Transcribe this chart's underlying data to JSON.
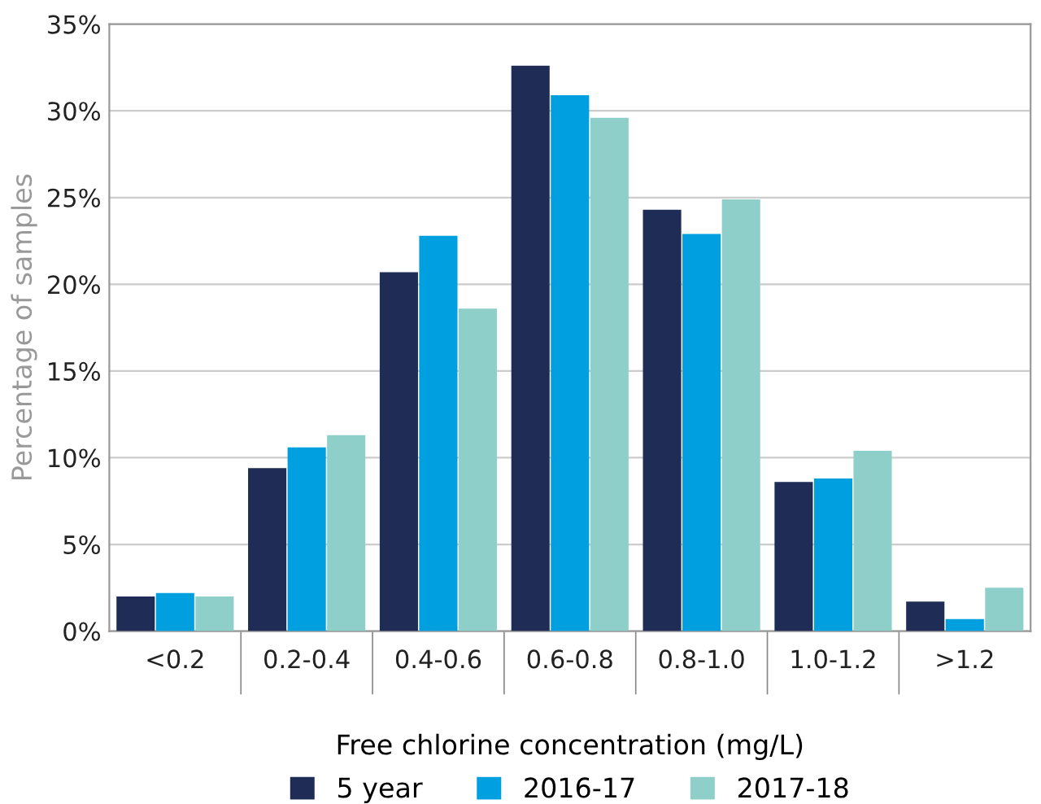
{
  "chart_data": {
    "type": "bar",
    "xlabel": "Free chlorine concentration (mg/L)",
    "ylabel": "Percentage of samples",
    "categories": [
      "<0.2",
      "0.2-0.4",
      "0.4-0.6",
      "0.6-0.8",
      "0.8-1.0",
      "1.0-1.2",
      ">1.2"
    ],
    "series": [
      {
        "name": "5 year",
        "color": "#1f2d56",
        "values": [
          2.0,
          9.4,
          20.7,
          32.6,
          24.3,
          8.6,
          1.7
        ]
      },
      {
        "name": "2016-17",
        "color": "#009fdf",
        "values": [
          2.2,
          10.6,
          22.8,
          30.9,
          22.9,
          8.8,
          0.7
        ]
      },
      {
        "name": "2017-18",
        "color": "#8ecfca",
        "values": [
          2.0,
          11.3,
          18.6,
          29.6,
          24.9,
          10.4,
          2.5
        ]
      }
    ],
    "ylim": [
      0,
      35
    ],
    "yticks": [
      {
        "value": 0,
        "label": "0%"
      },
      {
        "value": 5,
        "label": "5%"
      },
      {
        "value": 10,
        "label": "10%"
      },
      {
        "value": 15,
        "label": "15%"
      },
      {
        "value": 20,
        "label": "20%"
      },
      {
        "value": 25,
        "label": "25%"
      },
      {
        "value": 30,
        "label": "30%"
      },
      {
        "value": 35,
        "label": "35%"
      }
    ],
    "grid": "y",
    "legend": "bottom"
  }
}
